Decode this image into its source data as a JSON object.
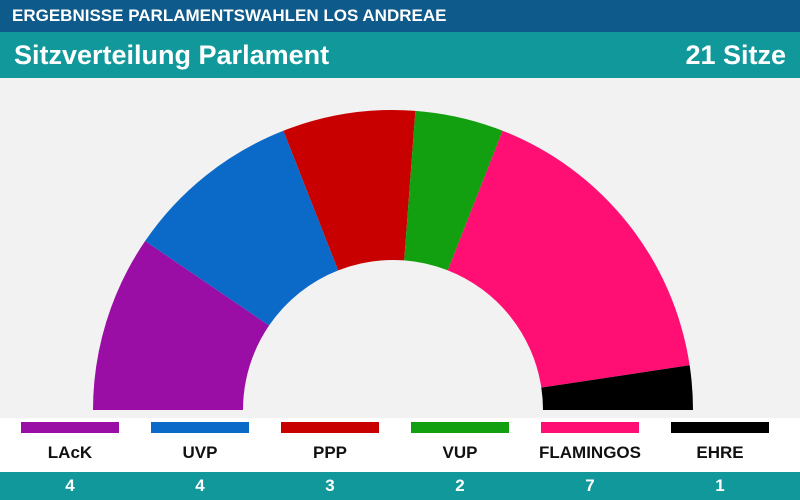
{
  "banner": {
    "text": "ERGEBNISSE PARLAMENTSWAHLEN LOS ANDREAE"
  },
  "header": {
    "title": "Sitzverteilung Parlament",
    "total": "21 Sitze"
  },
  "chart_data": {
    "type": "pie",
    "subtype": "parliament-hemicycle",
    "title": "Sitzverteilung Parlament",
    "total_seats": 21,
    "categories": [
      "LAcK",
      "UVP",
      "PPP",
      "VUP",
      "FLAMINGOS",
      "EHRE"
    ],
    "values": [
      4,
      4,
      3,
      2,
      7,
      1
    ],
    "colors": [
      "#9b0ea5",
      "#0b6ac8",
      "#c90000",
      "#13a010",
      "#ff0f73",
      "#000000"
    ],
    "legend": "bottom"
  }
}
